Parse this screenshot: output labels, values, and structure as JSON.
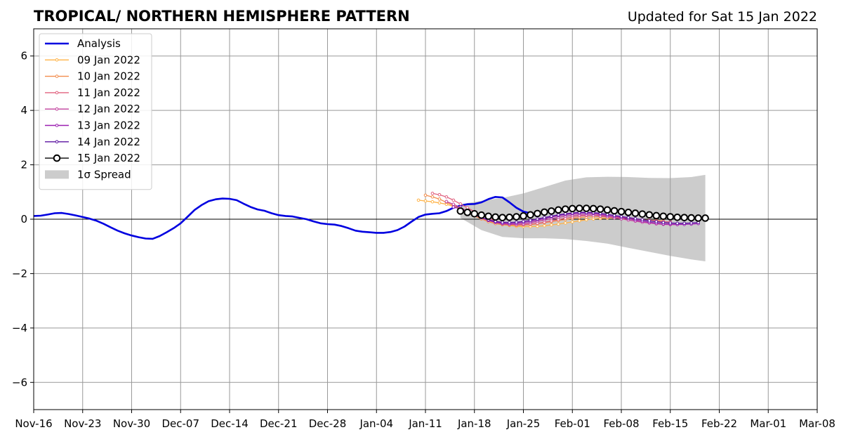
{
  "chart_data": {
    "type": "line",
    "title": "TROPICAL/ NORTHERN HEMISPHERE PATTERN",
    "subtitle": "Updated for Sat 15 Jan 2022",
    "xlabel": "",
    "ylabel": "",
    "xlim": [
      "2021-11-16",
      "2022-03-08"
    ],
    "ylim": [
      -7,
      7
    ],
    "xticks": [
      {
        "date": "2021-11-16",
        "label": "Nov-16"
      },
      {
        "date": "2021-11-23",
        "label": "Nov-23"
      },
      {
        "date": "2021-11-30",
        "label": "Nov-30"
      },
      {
        "date": "2021-12-07",
        "label": "Dec-07"
      },
      {
        "date": "2021-12-14",
        "label": "Dec-14"
      },
      {
        "date": "2021-12-21",
        "label": "Dec-21"
      },
      {
        "date": "2021-12-28",
        "label": "Dec-28"
      },
      {
        "date": "2022-01-04",
        "label": "Jan-04"
      },
      {
        "date": "2022-01-11",
        "label": "Jan-11"
      },
      {
        "date": "2022-01-18",
        "label": "Jan-18"
      },
      {
        "date": "2022-01-25",
        "label": "Jan-25"
      },
      {
        "date": "2022-02-01",
        "label": "Feb-01"
      },
      {
        "date": "2022-02-08",
        "label": "Feb-08"
      },
      {
        "date": "2022-02-15",
        "label": "Feb-15"
      },
      {
        "date": "2022-02-22",
        "label": "Feb-22"
      },
      {
        "date": "2022-03-01",
        "label": "Mar-01"
      },
      {
        "date": "2022-03-08",
        "label": "Mar-08"
      }
    ],
    "yticks": [
      {
        "value": 6,
        "label": "6"
      },
      {
        "value": 4,
        "label": "4"
      },
      {
        "value": 2,
        "label": "2"
      },
      {
        "value": 0,
        "label": "0"
      },
      {
        "value": -2,
        "label": "−2"
      },
      {
        "value": -4,
        "label": "−4"
      },
      {
        "value": -6,
        "label": "−6"
      }
    ],
    "grid": true,
    "legend_position": "top-left",
    "series": [
      {
        "name": "Analysis",
        "color": "#0000e0",
        "start": "2021-11-16",
        "values": [
          0.12,
          0.13,
          0.17,
          0.22,
          0.23,
          0.19,
          0.14,
          0.08,
          0.02,
          -0.06,
          -0.17,
          -0.3,
          -0.42,
          -0.52,
          -0.6,
          -0.66,
          -0.71,
          -0.72,
          -0.62,
          -0.48,
          -0.33,
          -0.15,
          0.09,
          0.34,
          0.52,
          0.66,
          0.73,
          0.76,
          0.75,
          0.7,
          0.57,
          0.45,
          0.36,
          0.31,
          0.22,
          0.15,
          0.12,
          0.1,
          0.05,
          0.0,
          -0.08,
          -0.15,
          -0.18,
          -0.2,
          -0.25,
          -0.33,
          -0.42,
          -0.46,
          -0.48,
          -0.5,
          -0.5,
          -0.47,
          -0.4,
          -0.27,
          -0.09,
          0.08,
          0.17,
          0.2,
          0.22,
          0.3,
          0.42,
          0.5,
          0.55,
          0.56,
          0.62,
          0.74,
          0.82,
          0.8,
          0.62,
          0.42,
          0.28,
          0.22
        ]
      },
      {
        "name": "09 Jan 2022",
        "color": "#ffb347",
        "start": "2022-01-10",
        "values": [
          0.7,
          0.67,
          0.64,
          0.6,
          0.55,
          0.47,
          0.38,
          0.27,
          0.14,
          0.02,
          -0.08,
          -0.15,
          -0.2,
          -0.23,
          -0.26,
          -0.27,
          -0.27,
          -0.26,
          -0.24,
          -0.21,
          -0.18,
          -0.14,
          -0.1,
          -0.06,
          -0.02,
          0.01,
          0.03,
          0.04,
          0.05,
          0.04,
          0.03
        ]
      },
      {
        "name": "10 Jan 2022",
        "color": "#f28c4c",
        "start": "2022-01-11",
        "values": [
          0.88,
          0.82,
          0.74,
          0.62,
          0.5,
          0.38,
          0.25,
          0.12,
          0.01,
          -0.09,
          -0.16,
          -0.2,
          -0.22,
          -0.23,
          -0.22,
          -0.2,
          -0.17,
          -0.13,
          -0.09,
          -0.05,
          -0.01,
          0.03,
          0.06,
          0.08,
          0.09,
          0.09,
          0.08,
          0.06,
          0.04,
          0.02,
          0.0,
          -0.02,
          -0.04,
          -0.05,
          -0.06
        ]
      },
      {
        "name": "11 Jan 2022",
        "color": "#e0607e",
        "start": "2022-01-12",
        "values": [
          0.95,
          0.9,
          0.82,
          0.7,
          0.56,
          0.42,
          0.28,
          0.15,
          0.04,
          -0.06,
          -0.13,
          -0.18,
          -0.2,
          -0.2,
          -0.18,
          -0.15,
          -0.11,
          -0.06,
          -0.01,
          0.04,
          0.08,
          0.12,
          0.14,
          0.15,
          0.15,
          0.13,
          0.1,
          0.07,
          0.04,
          0.01,
          -0.02,
          -0.05,
          -0.07,
          -0.09,
          -0.1
        ]
      },
      {
        "name": "12 Jan 2022",
        "color": "#c2409e",
        "start": "2022-01-14",
        "values": [
          0.65,
          0.55,
          0.43,
          0.3,
          0.17,
          0.05,
          -0.05,
          -0.12,
          -0.17,
          -0.19,
          -0.19,
          -0.17,
          -0.13,
          -0.08,
          -0.03,
          0.02,
          0.07,
          0.11,
          0.14,
          0.16,
          0.16,
          0.15,
          0.12,
          0.09,
          0.05,
          0.01,
          -0.03,
          -0.07,
          -0.11,
          -0.14,
          -0.17,
          -0.19,
          -0.2,
          -0.2,
          -0.19
        ]
      },
      {
        "name": "13 Jan 2022",
        "color": "#9b1fb0",
        "start": "2022-01-15",
        "values": [
          0.45,
          0.38,
          0.28,
          0.17,
          0.06,
          -0.04,
          -0.11,
          -0.15,
          -0.16,
          -0.15,
          -0.12,
          -0.08,
          -0.03,
          0.02,
          0.08,
          0.13,
          0.17,
          0.2,
          0.22,
          0.22,
          0.21,
          0.18,
          0.14,
          0.1,
          0.06,
          0.02,
          -0.03,
          -0.07,
          -0.11,
          -0.14,
          -0.17,
          -0.18,
          -0.19,
          -0.19,
          -0.18,
          -0.16
        ]
      },
      {
        "name": "14 Jan 2022",
        "color": "#5a12a0",
        "start": "2022-01-16",
        "values": [
          0.32,
          0.24,
          0.15,
          0.06,
          -0.02,
          -0.08,
          -0.11,
          -0.12,
          -0.11,
          -0.08,
          -0.04,
          0.01,
          0.06,
          0.11,
          0.16,
          0.2,
          0.23,
          0.25,
          0.25,
          0.24,
          0.22,
          0.18,
          0.14,
          0.1,
          0.06,
          0.02,
          -0.02,
          -0.06,
          -0.09,
          -0.12,
          -0.14,
          -0.15,
          -0.15,
          -0.14,
          -0.12
        ]
      },
      {
        "name": "15 Jan 2022",
        "color": "#000000",
        "start": "2022-01-16",
        "values": [
          0.3,
          0.25,
          0.2,
          0.15,
          0.11,
          0.08,
          0.06,
          0.07,
          0.09,
          0.12,
          0.16,
          0.21,
          0.26,
          0.3,
          0.34,
          0.37,
          0.39,
          0.4,
          0.4,
          0.39,
          0.37,
          0.34,
          0.31,
          0.28,
          0.25,
          0.22,
          0.19,
          0.16,
          0.13,
          0.11,
          0.09,
          0.07,
          0.06,
          0.05,
          0.04,
          0.04
        ]
      }
    ],
    "spread": {
      "name": "1σ Spread",
      "color": "#cccccc",
      "x": [
        "2022-01-16",
        "2022-01-19",
        "2022-01-22",
        "2022-01-25",
        "2022-01-28",
        "2022-01-31",
        "2022-02-03",
        "2022-02-06",
        "2022-02-09",
        "2022-02-12",
        "2022-02-15",
        "2022-02-18",
        "2022-02-20"
      ],
      "upper": [
        0.55,
        0.68,
        0.78,
        0.95,
        1.18,
        1.42,
        1.54,
        1.56,
        1.55,
        1.52,
        1.51,
        1.55,
        1.63
      ],
      "lower": [
        0.05,
        -0.4,
        -0.65,
        -0.7,
        -0.7,
        -0.73,
        -0.8,
        -0.9,
        -1.05,
        -1.2,
        -1.35,
        -1.48,
        -1.55
      ]
    }
  }
}
